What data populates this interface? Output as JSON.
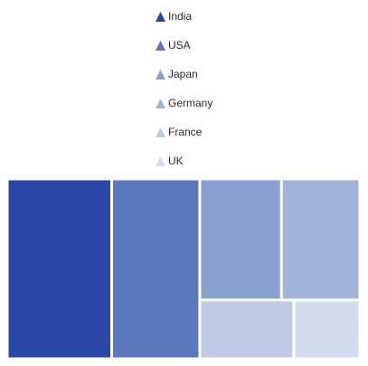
{
  "chart_data": {
    "type": "treemap",
    "title": "",
    "legend": {
      "position": "top",
      "marker": "triangle"
    },
    "items": [
      {
        "name": "India",
        "value": 44.5,
        "color": "#2a46a6"
      },
      {
        "name": "USA",
        "value": 37.5,
        "color": "#5b78bd"
      },
      {
        "name": "Japan",
        "value": 23.4,
        "color": "#8aa0d0"
      },
      {
        "name": "Germany",
        "value": 22.5,
        "color": "#a2b3da"
      },
      {
        "name": "France",
        "value": 13.1,
        "color": "#bdc9e5"
      },
      {
        "name": "UK",
        "value": 9.2,
        "color": "#d3dcee"
      }
    ]
  }
}
